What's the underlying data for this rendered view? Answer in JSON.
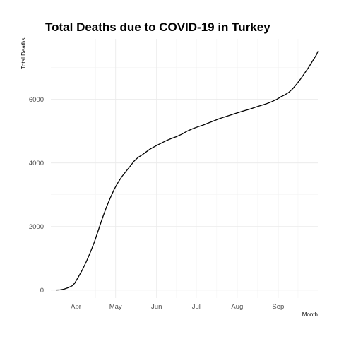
{
  "chart_data": {
    "type": "line",
    "title": "Total Deaths due to COVID-19 in Turkey",
    "xlabel": "Month",
    "ylabel": "Total Deaths",
    "x_ticks": [
      {
        "label": "Apr",
        "date": "2020-04-01"
      },
      {
        "label": "May",
        "date": "2020-05-01"
      },
      {
        "label": "Jun",
        "date": "2020-06-01"
      },
      {
        "label": "Jul",
        "date": "2020-07-01"
      },
      {
        "label": "Aug",
        "date": "2020-08-01"
      },
      {
        "label": "Sep",
        "date": "2020-09-01"
      }
    ],
    "y_ticks": [
      0,
      2000,
      4000,
      6000
    ],
    "xlim": [
      "2020-03-13",
      "2020-10-01"
    ],
    "ylim": [
      -250,
      7900
    ],
    "grid": true,
    "legend": "none",
    "series": [
      {
        "color": "#000000",
        "points": [
          [
            "2020-03-17",
            1
          ],
          [
            "2020-03-20",
            9
          ],
          [
            "2020-03-23",
            30
          ],
          [
            "2020-03-26",
            75
          ],
          [
            "2020-03-29",
            131
          ],
          [
            "2020-03-31",
            214
          ],
          [
            "2020-04-03",
            425
          ],
          [
            "2020-04-06",
            649
          ],
          [
            "2020-04-09",
            908
          ],
          [
            "2020-04-12",
            1198
          ],
          [
            "2020-04-15",
            1518
          ],
          [
            "2020-04-18",
            1890
          ],
          [
            "2020-04-21",
            2259
          ],
          [
            "2020-04-24",
            2600
          ],
          [
            "2020-04-27",
            2900
          ],
          [
            "2020-04-30",
            3174
          ],
          [
            "2020-05-03",
            3397
          ],
          [
            "2020-05-06",
            3584
          ],
          [
            "2020-05-09",
            3739
          ],
          [
            "2020-05-12",
            3894
          ],
          [
            "2020-05-15",
            4055
          ],
          [
            "2020-05-18",
            4171
          ],
          [
            "2020-05-21",
            4249
          ],
          [
            "2020-05-24",
            4340
          ],
          [
            "2020-05-27",
            4431
          ],
          [
            "2020-05-31",
            4522
          ],
          [
            "2020-06-04",
            4609
          ],
          [
            "2020-06-08",
            4692
          ],
          [
            "2020-06-12",
            4763
          ],
          [
            "2020-06-16",
            4825
          ],
          [
            "2020-06-20",
            4900
          ],
          [
            "2020-06-24",
            4995
          ],
          [
            "2020-06-28",
            5069
          ],
          [
            "2020-07-02",
            5131
          ],
          [
            "2020-07-06",
            5186
          ],
          [
            "2020-07-10",
            5251
          ],
          [
            "2020-07-14",
            5315
          ],
          [
            "2020-07-18",
            5382
          ],
          [
            "2020-07-22",
            5439
          ],
          [
            "2020-07-26",
            5491
          ],
          [
            "2020-07-30",
            5547
          ],
          [
            "2020-08-03",
            5599
          ],
          [
            "2020-08-07",
            5648
          ],
          [
            "2020-08-11",
            5697
          ],
          [
            "2020-08-15",
            5755
          ],
          [
            "2020-08-19",
            5808
          ],
          [
            "2020-08-23",
            5858
          ],
          [
            "2020-08-27",
            5922
          ],
          [
            "2020-08-31",
            6000
          ],
          [
            "2020-09-03",
            6076
          ],
          [
            "2020-09-06",
            6139
          ],
          [
            "2020-09-09",
            6215
          ],
          [
            "2020-09-12",
            6330
          ],
          [
            "2020-09-15",
            6477
          ],
          [
            "2020-09-18",
            6640
          ],
          [
            "2020-09-21",
            6820
          ],
          [
            "2020-09-24",
            7000
          ],
          [
            "2020-09-27",
            7200
          ],
          [
            "2020-09-30",
            7400
          ],
          [
            "2020-10-01",
            7500
          ]
        ]
      }
    ]
  }
}
